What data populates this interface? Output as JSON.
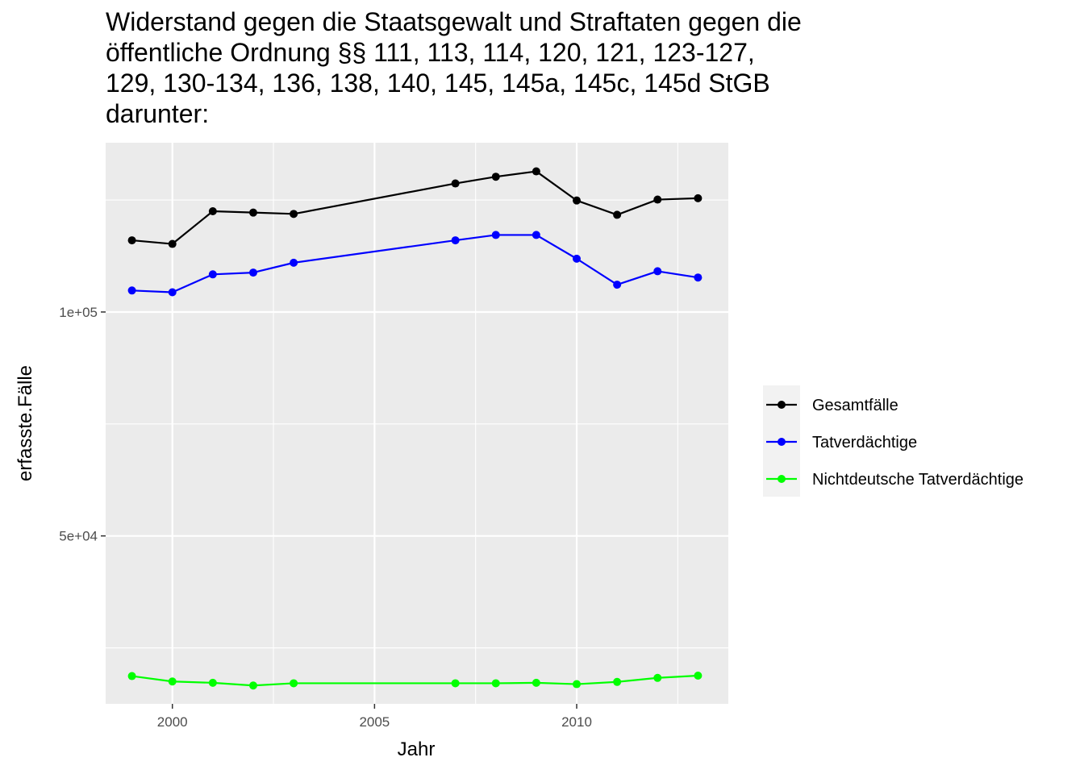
{
  "chart_data": {
    "type": "line",
    "title_lines": [
      "Widerstand gegen die Staatsgewalt und Straftaten gegen die",
      "öffentliche Ordnung §§ 111, 113, 114, 120, 121, 123-127,",
      "129, 130-134, 136, 138, 140, 145, 145a, 145c, 145d StGB",
      "darunter:"
    ],
    "xlabel": "Jahr",
    "ylabel": "erfasste.Fälle",
    "xlim": [
      1998.35,
      2013.75
    ],
    "ylim": [
      12500,
      137800
    ],
    "x_ticks": [
      2000,
      2005,
      2010
    ],
    "x_tick_labels": [
      "2000",
      "2005",
      "2010"
    ],
    "y_ticks": [
      50000,
      100000
    ],
    "y_tick_labels": [
      "5e+04",
      "1e+05"
    ],
    "grid": true,
    "legend_position": "right",
    "x": [
      1999,
      2000,
      2001,
      2002,
      2003,
      2007,
      2008,
      2009,
      2010,
      2011,
      2012,
      2013
    ],
    "series": [
      {
        "name": "Gesamtfälle",
        "color": "#000000",
        "values": [
          116000,
          115200,
          122500,
          122200,
          121900,
          128700,
          130200,
          131400,
          124900,
          121700,
          125100,
          125400
        ]
      },
      {
        "name": "Tatverdächtige",
        "color": "#0000ff",
        "values": [
          104800,
          104400,
          108400,
          108800,
          111000,
          116000,
          117200,
          117200,
          111900,
          106100,
          109100,
          107700
        ]
      },
      {
        "name": "Nichtdeutsche Tatverdächtige",
        "color": "#00ff00",
        "values": [
          18700,
          17500,
          17200,
          16600,
          17100,
          17100,
          17100,
          17200,
          16900,
          17400,
          18300,
          18800
        ]
      }
    ]
  }
}
